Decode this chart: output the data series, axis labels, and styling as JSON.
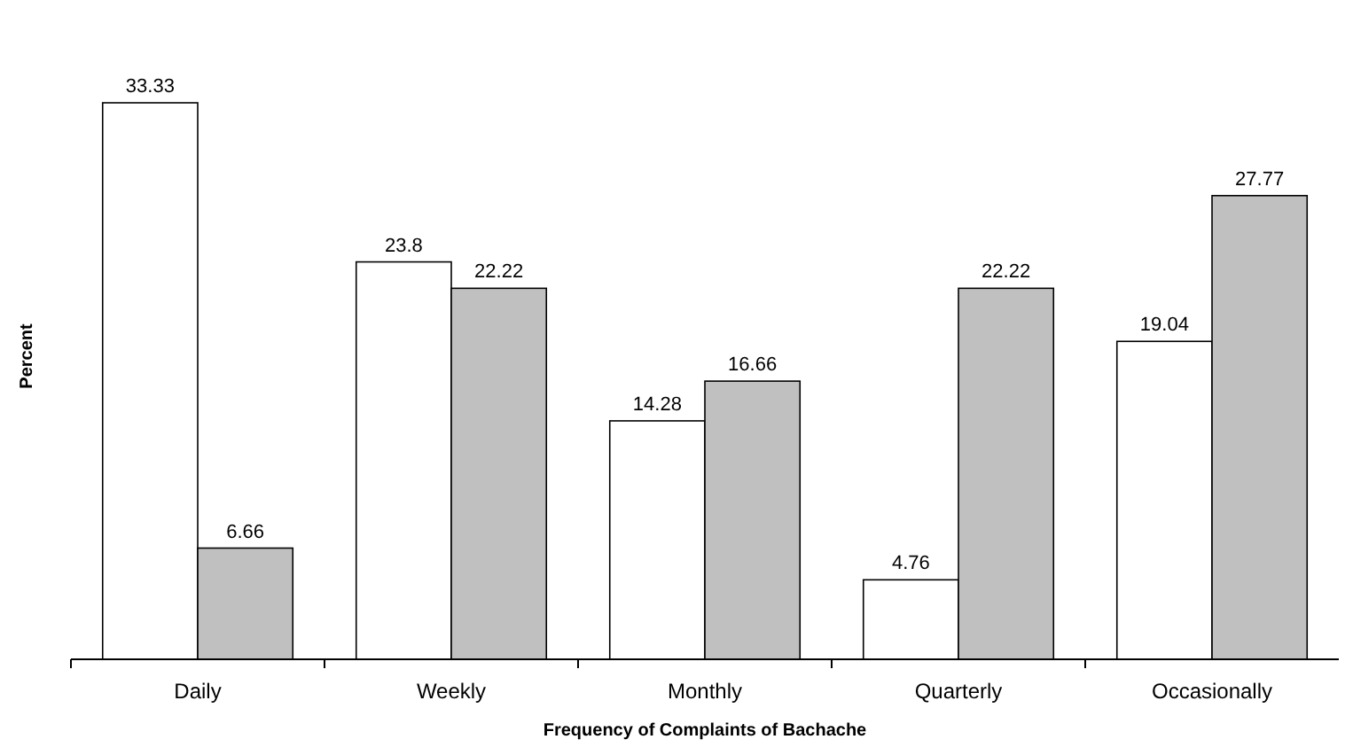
{
  "chart_data": {
    "type": "bar",
    "xlabel": "Frequency of Complaints of Bachache",
    "ylabel": "Percent",
    "categories": [
      "Daily",
      "Weekly",
      "Monthly",
      "Quarterly",
      "Occasionally"
    ],
    "data_labels": true,
    "series": [
      {
        "color": "#ffffff",
        "values": [
          33.33,
          23.8,
          14.28,
          4.76,
          19.04
        ]
      },
      {
        "color": "#c0c0c0",
        "values": [
          6.66,
          22.22,
          16.66,
          22.22,
          27.77
        ]
      }
    ]
  }
}
